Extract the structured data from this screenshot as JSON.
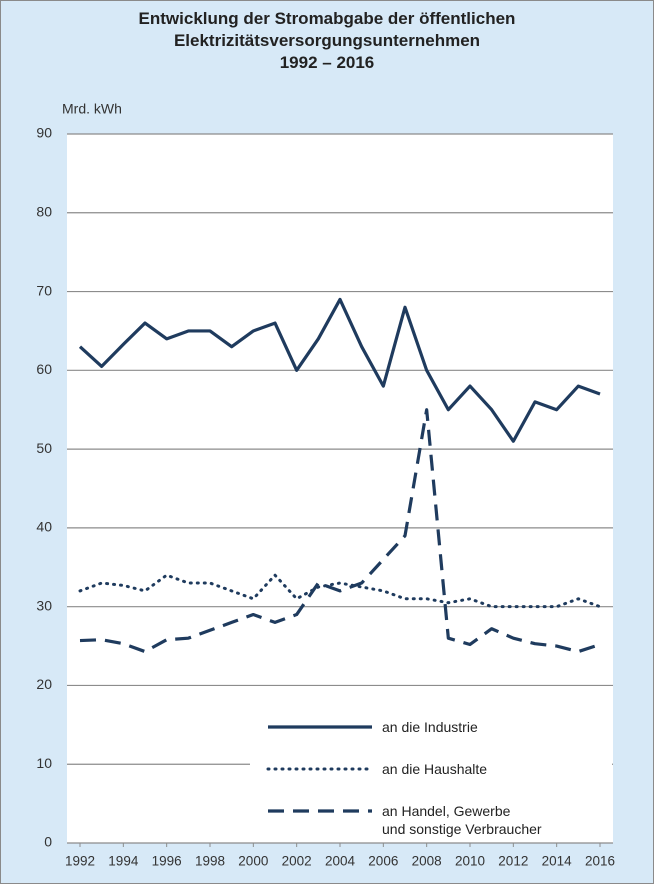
{
  "chart_data": {
    "type": "line",
    "title": "Entwicklung der Stromabgabe der öffentlichen\nElektrizitätsversorgungsunternehmen\n1992 – 2016",
    "y_label": "Mrd. kWh",
    "x": [
      1992,
      1993,
      1994,
      1995,
      1996,
      1997,
      1998,
      1999,
      2000,
      2001,
      2002,
      2003,
      2004,
      2005,
      2006,
      2007,
      2008,
      2009,
      2010,
      2011,
      2012,
      2013,
      2014,
      2015,
      2016
    ],
    "xlim": [
      1991.4,
      2016.6
    ],
    "xticks": [
      1992,
      1994,
      1996,
      1998,
      2000,
      2002,
      2004,
      2006,
      2008,
      2010,
      2012,
      2014,
      2016
    ],
    "ylim": [
      0,
      90
    ],
    "yticks": [
      0,
      10,
      20,
      30,
      40,
      50,
      60,
      70,
      80,
      90
    ],
    "grid": true,
    "legend": "lower right",
    "series": [
      {
        "name": "an die Industrie",
        "color": "#1f3b5e",
        "style": "solid",
        "values": [
          63,
          60.5,
          63.3,
          66,
          64,
          65,
          65,
          63,
          65,
          66,
          60,
          64,
          69,
          63,
          58,
          68,
          60,
          55,
          58,
          55,
          51,
          56,
          55,
          58,
          57
        ]
      },
      {
        "name": "an die Haushalte",
        "color": "#1f3b5e",
        "style": "dotted",
        "values": [
          32,
          33,
          32.7,
          32,
          34,
          33,
          33,
          32,
          31,
          34,
          31,
          32.5,
          33,
          32.5,
          32,
          31,
          31,
          30.5,
          31,
          30,
          30,
          30,
          30,
          31,
          30
        ]
      },
      {
        "name": "an Handel, Gewerbe\nund sonstige Verbraucher",
        "color": "#1f3b5e",
        "style": "dashed",
        "values": [
          25.7,
          25.8,
          25.3,
          24.3,
          25.8,
          26,
          27,
          28,
          29,
          28,
          29,
          33,
          32,
          33,
          36,
          39,
          55,
          26,
          25.2,
          27.2,
          26,
          25.3,
          25,
          24.3,
          25.2
        ]
      }
    ]
  }
}
